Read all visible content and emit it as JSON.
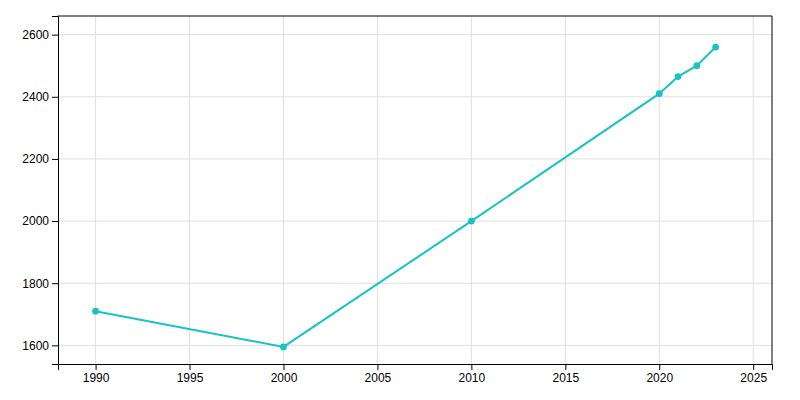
{
  "chart_data": {
    "type": "line",
    "x": [
      1990,
      2000,
      2010,
      2020,
      2021,
      2022,
      2023
    ],
    "values": [
      1710,
      1595,
      2000,
      2410,
      2465,
      2500,
      2560
    ],
    "color": "#17c3c3",
    "marker": "circle",
    "xlim": [
      1988,
      2026
    ],
    "ylim": [
      1540,
      2660
    ],
    "xticks": [
      1990,
      1995,
      2000,
      2005,
      2010,
      2015,
      2020,
      2025
    ],
    "yticks": [
      1600,
      1800,
      2000,
      2200,
      2400,
      2600
    ],
    "grid": true
  }
}
